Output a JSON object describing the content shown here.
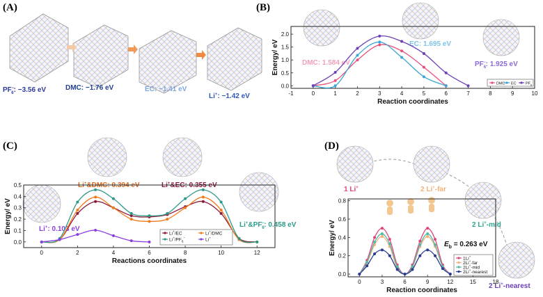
{
  "colors": {
    "pf6_text": "#2d3a9a",
    "dmc_text": "#1f3f8f",
    "ec_text": "#7ea7df",
    "li_text": "#2f57b8",
    "arrow1": "#f4c9a8",
    "arrow2": "#ef9a5a",
    "arrow3": "#ee8a44",
    "dmc_b": "#e8507a",
    "ec_b": "#39a6d6",
    "pf6_b": "#6a3fb8",
    "ec_c": "#8b1a3a",
    "dmc_c": "#f07a1a",
    "pf6_c": "#2c9a8a",
    "li_c": "#8c3fe0",
    "d1": "#e2437a",
    "d2": "#f2b07a",
    "d3": "#53b9a8",
    "d4": "#2b3b8f"
  },
  "panel_a": {
    "label": "(A)",
    "steps": [
      {
        "text_main": "PF",
        "text_sup": "6",
        "text_sup2": "−",
        "text_tail": ": −3.56 eV"
      },
      {
        "text_main": "DMC: −1.76 eV"
      },
      {
        "text_main": "EC: −1.41 eV"
      },
      {
        "text_main": "Li",
        "text_sup": "+",
        "text_tail": ": −1.42 eV"
      }
    ]
  },
  "panel_b_label": "(B)",
  "panel_c_label": "(C)",
  "panel_d_label": "(D)",
  "panel_b_annotations": {
    "dmc": "DMC: 1.584 eV",
    "ec": "EC: 1.695 eV",
    "pf6": "PF",
    "pf6_sub": "6",
    "pf6_sup": "−",
    "pf6_tail": ": 1.925 eV"
  },
  "panel_c_annotations": {
    "li": "Li",
    "li_sup": "+",
    "li_tail": ": 0.103 eV",
    "dmc": "Li",
    "dmc_sup": "+",
    "dmc_tail": "&DMC: 0.394 eV",
    "ec": "Li",
    "ec_sup": "+",
    "ec_tail": "&EC: 0.355 eV",
    "pf6": "Li",
    "pf6_sup": "+",
    "pf6_tail": "&PF",
    "pf6_sub": "6",
    "pf6_sup2": "−",
    "pf6_tail2": ": 0.458 eV"
  },
  "panel_d_annotations": {
    "one": "1 Li",
    "one_sup": "+",
    "far": "2 Li",
    "far_sup": "+",
    "far_tail": "-far",
    "mid": "2 Li",
    "mid_sup": "+",
    "mid_tail": "-mid",
    "nearest": "2 Li",
    "nearest_sup": "+",
    "nearest_tail": "-nearest",
    "eb_symbol": "E",
    "eb_sub": "b",
    "eb_tail": " = 0.263 eV"
  },
  "chart_data": [
    {
      "id": "B",
      "type": "line",
      "xlabel": "Reaction coordinates",
      "ylabel": "Energy/ eV",
      "xlim": [
        -1,
        10
      ],
      "ylim": [
        -0.1,
        2.3
      ],
      "xticks": [
        -1,
        0,
        1,
        2,
        3,
        4,
        5,
        6,
        7,
        8,
        9,
        10
      ],
      "yticks": [
        0.0,
        0.5,
        1.0,
        1.5,
        2.0
      ],
      "ytick_labels": [
        "0.0",
        "0.5",
        "1.0",
        "1.5",
        "2.0"
      ],
      "legend_position": "bottom-right",
      "series": [
        {
          "name": "DMC",
          "color": "#e8507a",
          "x": [
            0,
            1,
            2,
            3,
            4,
            5,
            6
          ],
          "y": [
            0.0,
            0.2,
            1.0,
            1.584,
            1.35,
            0.72,
            0.0
          ]
        },
        {
          "name": "EC",
          "color": "#39a6d6",
          "x": [
            0,
            1,
            2,
            3,
            4,
            5,
            6
          ],
          "y": [
            0.0,
            0.0,
            1.18,
            1.695,
            1.1,
            0.35,
            0.0
          ]
        },
        {
          "name": "PF",
          "name_sub": "6",
          "color": "#6a3fb8",
          "x": [
            0,
            1,
            2,
            3,
            4,
            5,
            6,
            7
          ],
          "y": [
            0.0,
            0.52,
            1.45,
            1.925,
            1.72,
            1.25,
            0.5,
            0.0
          ]
        }
      ]
    },
    {
      "id": "C",
      "type": "line",
      "xlabel": "Reactions coordinates",
      "ylabel": "Energy/ eV",
      "xlim": [
        -1,
        13
      ],
      "ylim": [
        -0.05,
        0.5
      ],
      "xticks": [
        0,
        2,
        4,
        6,
        8,
        10,
        12
      ],
      "yticks": [
        0.0,
        0.1,
        0.2,
        0.3,
        0.4,
        0.5
      ],
      "ytick_labels": [
        "0.0",
        "0.1",
        "0.2",
        "0.3",
        "0.4",
        "0.5"
      ],
      "legend_position": "bottom-center",
      "series": [
        {
          "name": "Li",
          "name_sup": "+",
          "name_tail": "/EC",
          "color": "#8b1a3a",
          "x": [
            0,
            1,
            2,
            3,
            4,
            5,
            6,
            7,
            8,
            9,
            10,
            11,
            12
          ],
          "y": [
            0.0,
            0.02,
            0.25,
            0.355,
            0.3,
            0.23,
            0.22,
            0.24,
            0.31,
            0.355,
            0.25,
            0.03,
            0.0
          ]
        },
        {
          "name": "Li",
          "name_sup": "+",
          "name_tail": "/DMC",
          "color": "#f07a1a",
          "x": [
            0,
            1,
            2,
            3,
            4,
            5,
            6,
            7,
            8,
            9,
            10,
            11,
            12
          ],
          "y": [
            0.0,
            0.02,
            0.28,
            0.394,
            0.3,
            0.2,
            0.18,
            0.2,
            0.3,
            0.394,
            0.28,
            0.02,
            0.0
          ]
        },
        {
          "name": "Li",
          "name_sup": "+",
          "name_tail": "/PF",
          "name_sub": "6",
          "name_sup2": "−",
          "color": "#2c9a8a",
          "x": [
            0,
            1,
            2,
            3,
            4,
            5,
            6,
            7,
            8,
            9,
            10,
            11,
            12
          ],
          "y": [
            0.0,
            0.03,
            0.35,
            0.458,
            0.38,
            0.25,
            0.23,
            0.25,
            0.38,
            0.458,
            0.35,
            0.03,
            0.0
          ]
        },
        {
          "name": "Li",
          "name_sup": "+",
          "color": "#8c3fe0",
          "x": [
            0,
            1,
            2,
            3,
            4,
            5,
            6
          ],
          "y": [
            0.0,
            0.02,
            0.065,
            0.103,
            0.055,
            0.01,
            0.0
          ]
        }
      ]
    },
    {
      "id": "D",
      "type": "line",
      "xlabel": "Reaction coordinates",
      "ylabel": "Energy/ eV",
      "xlim": [
        -1.5,
        18
      ],
      "ylim": [
        -0.03,
        0.82
      ],
      "xticks": [
        0,
        3,
        6,
        9,
        12,
        15,
        18
      ],
      "yticks": [
        0.0,
        0.2,
        0.4,
        0.6,
        0.8
      ],
      "ytick_labels": [
        "0.0",
        "0.2",
        "0.4",
        "0.6",
        "0.8"
      ],
      "legend_position": "bottom-right",
      "series": [
        {
          "name": "1Li",
          "name_sup": "+",
          "color": "#e2437a",
          "x": [
            0,
            1,
            2,
            3,
            4,
            5,
            6,
            7,
            8,
            9,
            10,
            11,
            12
          ],
          "y": [
            0.0,
            0.15,
            0.4,
            0.5,
            0.38,
            0.1,
            0.0,
            0.1,
            0.36,
            0.5,
            0.38,
            0.1,
            0.0
          ]
        },
        {
          "name": "2Li",
          "name_sup": "+",
          "name_tail": "-far",
          "color": "#f2b07a",
          "x": [
            0,
            1,
            2,
            3,
            4,
            5,
            6,
            7,
            8,
            9,
            10,
            11,
            12
          ],
          "y": [
            0.0,
            0.12,
            0.32,
            0.41,
            0.3,
            0.06,
            0.0,
            0.07,
            0.3,
            0.41,
            0.3,
            0.08,
            0.0
          ]
        },
        {
          "name": "2Li",
          "name_sup": "+",
          "name_tail": "-mid",
          "color": "#53b9a8",
          "x": [
            0,
            1,
            2,
            3,
            4,
            5,
            6,
            7,
            8,
            9,
            10,
            11,
            12
          ],
          "y": [
            0.0,
            0.13,
            0.35,
            0.44,
            0.33,
            0.08,
            0.0,
            0.08,
            0.32,
            0.44,
            0.32,
            0.08,
            0.0
          ]
        },
        {
          "name": "2Li",
          "name_sup": "+",
          "name_tail": "-nearest",
          "color": "#2b3b8f",
          "x": [
            0,
            1,
            2,
            3,
            4,
            5,
            6,
            7,
            8,
            9,
            10,
            11,
            12
          ],
          "y": [
            0.0,
            0.09,
            0.22,
            0.263,
            0.2,
            0.05,
            0.0,
            0.05,
            0.2,
            0.263,
            0.2,
            0.06,
            0.0
          ]
        }
      ]
    }
  ]
}
